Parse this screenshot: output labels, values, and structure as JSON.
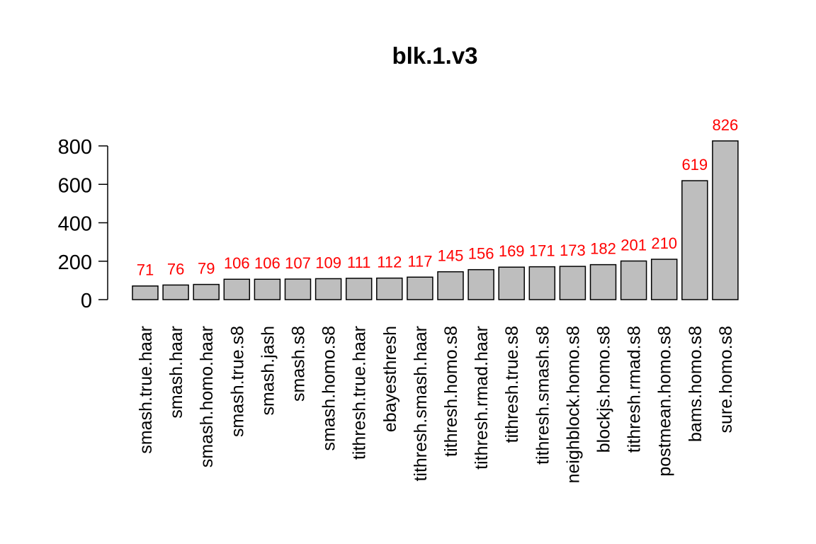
{
  "chart_data": {
    "type": "bar",
    "title": "blk.1.v3",
    "xlabel": "",
    "ylabel": "",
    "ylim": [
      0,
      826
    ],
    "yticks": [
      0,
      200,
      400,
      600,
      800
    ],
    "categories": [
      "smash.true.haar",
      "smash.haar",
      "smash.homo.haar",
      "smash.true.s8",
      "smash.jash",
      "smash.s8",
      "smash.homo.s8",
      "tithresh.true.haar",
      "ebayesthresh",
      "tithresh.smash.haar",
      "tithresh.homo.s8",
      "tithresh.rmad.haar",
      "tithresh.true.s8",
      "tithresh.smash.s8",
      "neighblock.homo.s8",
      "blockjs.homo.s8",
      "tithresh.rmad.s8",
      "postmean.homo.s8",
      "bams.homo.s8",
      "sure.homo.s8"
    ],
    "values": [
      71,
      76,
      79,
      106,
      106,
      107,
      109,
      111,
      112,
      117,
      145,
      156,
      169,
      171,
      173,
      182,
      201,
      210,
      619,
      826
    ],
    "bar_labels": [
      "71",
      "76",
      "79",
      "106",
      "106",
      "107",
      "109",
      "111",
      "112",
      "117",
      "145",
      "156",
      "169",
      "171",
      "173",
      "182",
      "201",
      "210",
      "619",
      "826"
    ],
    "grid": false,
    "legend": "none",
    "colors": {
      "bar": "#bebebe",
      "bar_border": "#000000",
      "label": "#ff0000",
      "axis": "#000000"
    }
  }
}
